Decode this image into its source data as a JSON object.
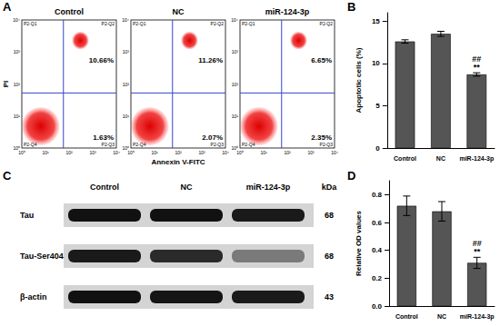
{
  "panels": {
    "A": {
      "panel": "A",
      "type": "flow_cytometry",
      "y_label": "PI",
      "x_label": "Annexin V-FITC",
      "axis_tick_labels": [
        "10⁰",
        "10¹",
        "10²",
        "10³",
        "10⁴"
      ],
      "quadrants": {
        "upper_left": "P2-Q1",
        "upper_right": "P2-Q2",
        "lower_right": "P2-Q3",
        "lower_left": "P2-Q4"
      },
      "plots": [
        {
          "title": "Control",
          "upper_right": "10.66%",
          "lower_right": "1.63%"
        },
        {
          "title": "NC",
          "upper_right": "11.26%",
          "lower_right": "2.07%"
        },
        {
          "title": "miR-124-3p",
          "upper_right": "6.65%",
          "lower_right": "2.35%"
        }
      ]
    },
    "C": {
      "panel": "C",
      "type": "western_blot",
      "lanes": [
        "Control",
        "NC",
        "miR-124-3p"
      ],
      "unit": "kDa",
      "rows": [
        {
          "name": "Tau",
          "kDa": "68"
        },
        {
          "name": "Tau-Ser404",
          "kDa": "68"
        },
        {
          "name": "β-actin",
          "kDa": "43"
        }
      ]
    }
  },
  "chart_data": [
    {
      "panel": "B",
      "type": "bar",
      "y_label": "Apoptotic cells (%)",
      "categories": [
        "Control",
        "NC",
        "miR-124-3p"
      ],
      "values": [
        12.6,
        13.5,
        8.7
      ],
      "errors": [
        0.2,
        0.3,
        0.2
      ],
      "color": "#555555",
      "ylim": [
        0,
        16
      ],
      "yticks": [
        0,
        5,
        10,
        15
      ],
      "grid": false,
      "annotations": [
        {
          "category": "miR-124-3p",
          "texts": [
            "**",
            "##"
          ]
        }
      ]
    },
    {
      "panel": "D",
      "type": "bar",
      "y_label": "Relative OD values",
      "categories": [
        "Control",
        "NC",
        "miR-124-3p"
      ],
      "values": [
        0.72,
        0.68,
        0.31
      ],
      "errors": [
        0.07,
        0.07,
        0.04
      ],
      "color": "#555555",
      "ylim": [
        0,
        0.9
      ],
      "yticks": [
        {
          "value": 0,
          "label": "0.0"
        },
        {
          "value": 0.2,
          "label": "0.2"
        },
        {
          "value": 0.4,
          "label": "0.4"
        },
        {
          "value": 0.6,
          "label": "0.6"
        },
        {
          "value": 0.8,
          "label": "0.8"
        }
      ],
      "grid": false,
      "annotations": [
        {
          "category": "miR-124-3p",
          "texts": [
            "**",
            "##"
          ]
        }
      ]
    }
  ]
}
